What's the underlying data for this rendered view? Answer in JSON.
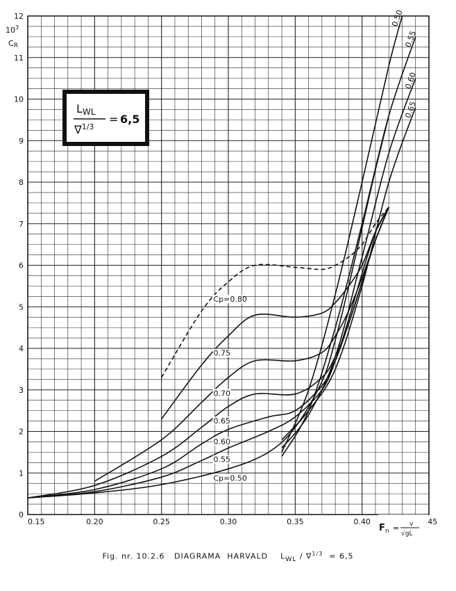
{
  "chart_data": {
    "type": "line",
    "title_box": {
      "numerator": "L",
      "numerator_sub": "WL",
      "denominator": "∇",
      "denominator_sup": "1/3",
      "equals": "=",
      "value": "6,5"
    },
    "y_unit": "10",
    "y_unit_sup": "3",
    "y_symbol": "C",
    "y_symbol_sub": "R",
    "x_label": "F",
    "x_label_sub": "n",
    "x_formula_num": "v",
    "x_formula_den": "√gL",
    "xlim": [
      0.15,
      0.45
    ],
    "ylim": [
      0,
      12
    ],
    "x_ticks": [
      "0.15",
      "0.20",
      "0.25",
      "0.30",
      "0.35",
      "0.40",
      "0.45"
    ],
    "y_ticks": [
      "0",
      "1",
      "2",
      "3",
      "4",
      "5",
      "6",
      "7",
      "8",
      "9",
      "10",
      "11",
      "12"
    ],
    "grid": true,
    "cp_prefix": "Cp=",
    "series": [
      {
        "name": "0.50",
        "x": [
          0.15,
          0.2,
          0.25,
          0.3,
          0.33,
          0.35,
          0.37,
          0.38,
          0.39,
          0.4,
          0.41,
          0.42
        ],
        "y": [
          0.4,
          0.52,
          0.72,
          1.1,
          1.5,
          2.1,
          3.2,
          4.2,
          5.5,
          6.9,
          8.3,
          9.6
        ]
      },
      {
        "name": "0.55",
        "x": [
          0.15,
          0.2,
          0.25,
          0.28,
          0.3,
          0.33,
          0.35,
          0.37,
          0.38,
          0.39,
          0.4,
          0.41,
          0.42
        ],
        "y": [
          0.4,
          0.55,
          0.9,
          1.3,
          1.6,
          2.0,
          2.35,
          3.0,
          3.7,
          4.7,
          5.8,
          6.8,
          7.4
        ]
      },
      {
        "name": "0.60",
        "x": [
          0.15,
          0.2,
          0.25,
          0.28,
          0.3,
          0.33,
          0.35,
          0.37,
          0.38,
          0.39,
          0.4,
          0.41,
          0.42
        ],
        "y": [
          0.4,
          0.6,
          1.1,
          1.7,
          2.05,
          2.35,
          2.5,
          3.1,
          3.7,
          4.6,
          5.6,
          6.6,
          7.4
        ]
      },
      {
        "name": "0.65",
        "x": [
          0.15,
          0.2,
          0.25,
          0.28,
          0.3,
          0.32,
          0.35,
          0.37,
          0.38,
          0.39,
          0.4,
          0.41,
          0.42
        ],
        "y": [
          0.4,
          0.7,
          1.4,
          2.1,
          2.6,
          2.9,
          2.9,
          3.3,
          3.8,
          4.6,
          5.6,
          6.6,
          7.4
        ]
      },
      {
        "name": "0.70",
        "x": [
          0.2,
          0.25,
          0.28,
          0.3,
          0.32,
          0.35,
          0.37,
          0.38,
          0.39,
          0.4,
          0.41,
          0.42
        ],
        "y": [
          0.8,
          1.8,
          2.7,
          3.3,
          3.7,
          3.7,
          3.9,
          4.3,
          4.9,
          5.7,
          6.6,
          7.4
        ]
      },
      {
        "name": "0.75",
        "x": [
          0.25,
          0.28,
          0.3,
          0.32,
          0.35,
          0.37,
          0.38,
          0.39,
          0.4,
          0.41,
          0.42
        ],
        "y": [
          2.3,
          3.6,
          4.3,
          4.8,
          4.75,
          4.85,
          5.1,
          5.5,
          6.0,
          6.8,
          7.4
        ]
      },
      {
        "name": "0.80",
        "x": [
          0.25,
          0.28,
          0.3,
          0.32,
          0.35,
          0.37,
          0.38,
          0.39,
          0.4,
          0.41,
          0.42
        ],
        "y": [
          3.3,
          4.9,
          5.6,
          6.0,
          5.95,
          5.9,
          6.0,
          6.2,
          6.5,
          7.0,
          7.4
        ]
      }
    ],
    "steep_curves": [
      {
        "name": "0.50",
        "x": [
          0.34,
          0.36,
          0.38,
          0.4,
          0.42,
          0.43
        ],
        "y": [
          1.5,
          3.0,
          5.3,
          8.0,
          10.8,
          12.0
        ]
      },
      {
        "name": "0.55",
        "x": [
          0.34,
          0.36,
          0.38,
          0.4,
          0.42,
          0.44
        ],
        "y": [
          1.4,
          2.5,
          4.5,
          7.0,
          9.6,
          11.5
        ]
      },
      {
        "name": "0.60",
        "x": [
          0.34,
          0.36,
          0.38,
          0.4,
          0.42,
          0.44
        ],
        "y": [
          1.6,
          2.4,
          3.8,
          6.2,
          8.7,
          10.5
        ]
      },
      {
        "name": "0.65",
        "x": [
          0.34,
          0.36,
          0.38,
          0.4,
          0.42,
          0.44
        ],
        "y": [
          1.8,
          2.5,
          3.5,
          5.5,
          8.0,
          9.8
        ]
      }
    ],
    "caption": {
      "prefix": "Fig. nr. 10.2.6   DIAGRAMA  HARVALD    L",
      "sub": "WL",
      "mid": " / ∇",
      "sup": "1/3",
      "suffix": "  = 6,5"
    }
  }
}
